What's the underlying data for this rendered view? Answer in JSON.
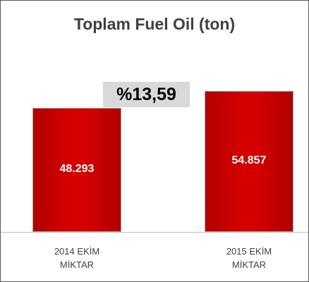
{
  "chart_data": {
    "type": "bar",
    "title": "Toplam Fuel Oil (ton)",
    "annotation": "%13,59",
    "categories": [
      "2014 EKİM MİKTAR",
      "2015 EKİM MİKTAR"
    ],
    "values": [
      48293,
      54857
    ],
    "value_labels": [
      "48.293",
      "54.857"
    ],
    "color": "#d40000"
  }
}
